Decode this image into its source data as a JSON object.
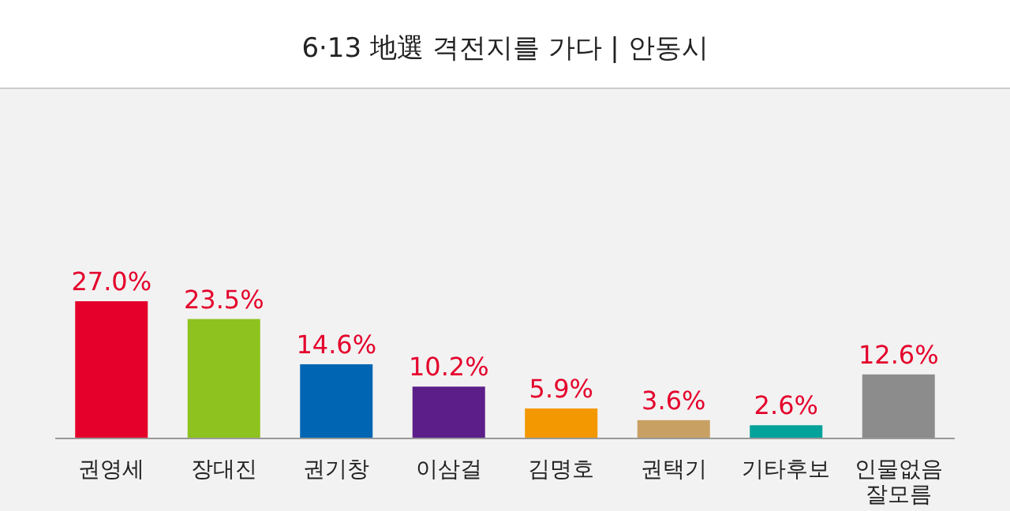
{
  "chart_data": {
    "type": "bar",
    "title": "6·13 地選 격전지를 가다  |  안동시",
    "categories": [
      "권영세",
      "장대진",
      "권기창",
      "이삼걸",
      "김명호",
      "권택기",
      "기타후보",
      "인물없음 잘모름"
    ],
    "values": [
      27.0,
      23.5,
      14.6,
      10.2,
      5.9,
      3.6,
      2.6,
      12.6
    ],
    "colors": [
      "#e4002b",
      "#8dc21f",
      "#0066b3",
      "#5c1f8a",
      "#f39800",
      "#c9a063",
      "#00a29a",
      "#8c8c8c"
    ],
    "value_labels": [
      "27.0%",
      "23.5%",
      "14.6%",
      "10.2%",
      "5.9%",
      "3.6%",
      "2.6%",
      "12.6%"
    ],
    "data_labels": true
  }
}
